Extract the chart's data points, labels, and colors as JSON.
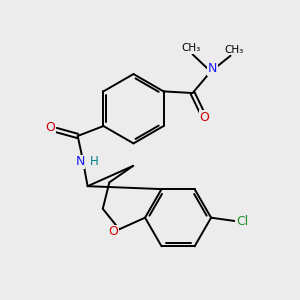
{
  "background_color": "#ececec",
  "atom_colors": {
    "C": "#000000",
    "N": "#1a1aff",
    "O": "#cc0000",
    "Cl": "#228B22",
    "H": "#008080"
  },
  "bond_color": "#000000",
  "bond_width": 1.4,
  "fig_width": 3.0,
  "fig_height": 3.0,
  "dpi": 100
}
